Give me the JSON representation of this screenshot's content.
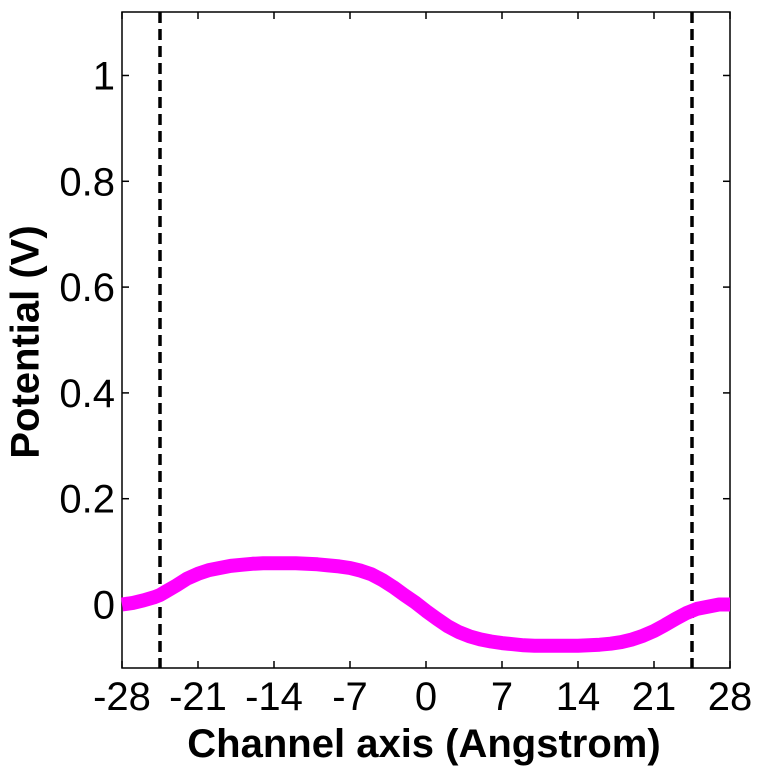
{
  "chart_data": {
    "type": "line",
    "title": "",
    "xlabel": "Channel axis (Angstrom)",
    "ylabel": "Potential (V)",
    "xlim": [
      -28,
      28
    ],
    "ylim": [
      -0.12,
      1.12
    ],
    "xticks": [
      -28,
      -21,
      -14,
      -7,
      0,
      7,
      14,
      21,
      28
    ],
    "xtick_labels": [
      "-28",
      "-21",
      "-14",
      "-7",
      "0",
      "7",
      "14",
      "21",
      "28"
    ],
    "yticks": [
      0,
      0.2,
      0.4,
      0.6,
      0.8,
      1
    ],
    "ytick_labels": [
      "0",
      "0.2",
      "0.4",
      "0.6",
      "0.8",
      "1"
    ],
    "grid": false,
    "box": true,
    "series": [
      {
        "color": "#ff00ff",
        "style": "solid",
        "x": [
          -28,
          -27,
          -26,
          -25,
          -24.5,
          -24,
          -23,
          -22,
          -21,
          -20,
          -19,
          -18,
          -17,
          -16,
          -15,
          -14,
          -13,
          -12,
          -11,
          -10,
          -9,
          -8,
          -7,
          -6,
          -5,
          -4,
          -3,
          -2,
          -1,
          0,
          1,
          2,
          3,
          4,
          5,
          6,
          7,
          8,
          9,
          10,
          11,
          12,
          13,
          14,
          15,
          16,
          17,
          18,
          19,
          20,
          21,
          22,
          23,
          24,
          24.5,
          25,
          26,
          27,
          28
        ],
        "y": [
          0.0,
          0.003,
          0.008,
          0.014,
          0.018,
          0.024,
          0.036,
          0.049,
          0.058,
          0.065,
          0.069,
          0.073,
          0.075,
          0.077,
          0.078,
          0.078,
          0.078,
          0.078,
          0.077,
          0.076,
          0.074,
          0.072,
          0.069,
          0.064,
          0.057,
          0.046,
          0.033,
          0.018,
          0.004,
          -0.012,
          -0.027,
          -0.041,
          -0.052,
          -0.06,
          -0.066,
          -0.07,
          -0.073,
          -0.075,
          -0.077,
          -0.078,
          -0.078,
          -0.078,
          -0.078,
          -0.078,
          -0.077,
          -0.076,
          -0.074,
          -0.071,
          -0.066,
          -0.059,
          -0.05,
          -0.039,
          -0.027,
          -0.016,
          -0.012,
          -0.008,
          -0.004,
          0.0,
          0.0
        ]
      }
    ],
    "vlines": [
      {
        "x": -24.5,
        "color": "#000000",
        "style": "dashed"
      },
      {
        "x": 24.5,
        "color": "#000000",
        "style": "dashed"
      }
    ]
  }
}
